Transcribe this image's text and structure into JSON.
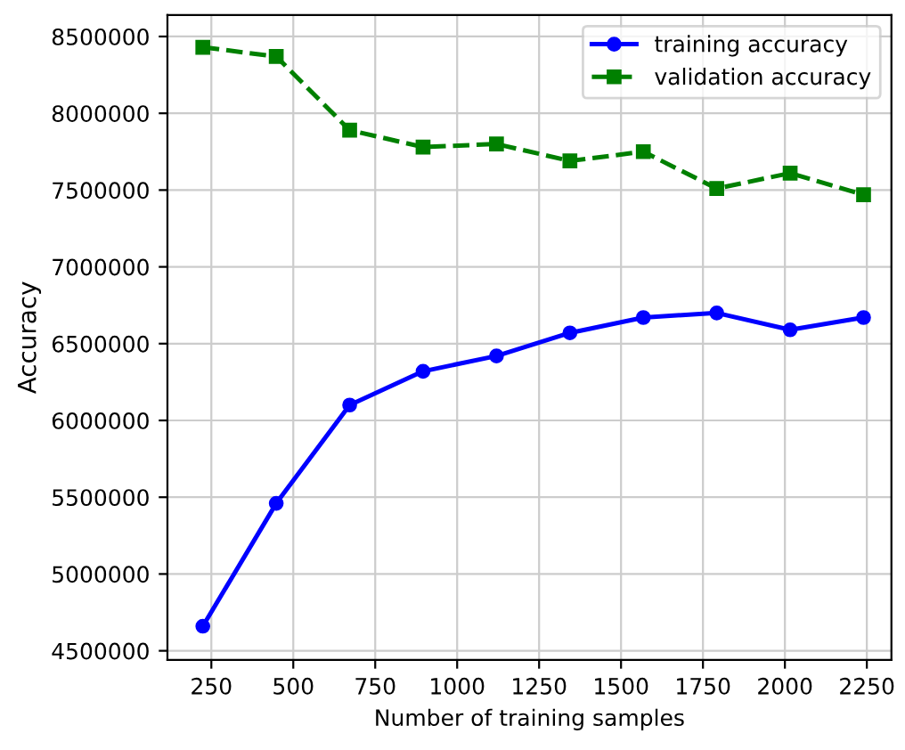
{
  "chart_data": {
    "type": "line",
    "xlabel": "Number of training samples",
    "ylabel": "Accuracy",
    "x": [
      224,
      448,
      672,
      896,
      1120,
      1344,
      1568,
      1792,
      2016,
      2240
    ],
    "series": [
      {
        "name": "training accuracy",
        "color": "#0000ff",
        "marker": "circle",
        "line_style": "solid",
        "values": [
          4660000,
          5460000,
          6100000,
          6320000,
          6420000,
          6570000,
          6670000,
          6700000,
          6590000,
          6670000
        ]
      },
      {
        "name": "validation accuracy",
        "color": "#008000",
        "marker": "square",
        "line_style": "dashed",
        "values": [
          8430000,
          8370000,
          7890000,
          7780000,
          7800000,
          7690000,
          7750000,
          7510000,
          7610000,
          7470000
        ]
      }
    ],
    "xlim": [
      116,
      2325
    ],
    "ylim": [
      4440000,
      8640000
    ],
    "xticks": [
      250,
      500,
      750,
      1000,
      1250,
      1500,
      1750,
      2000,
      2250
    ],
    "yticks": [
      4500000,
      5000000,
      5500000,
      6000000,
      6500000,
      7000000,
      7500000,
      8000000,
      8500000
    ],
    "grid": true,
    "legend": "top right"
  }
}
